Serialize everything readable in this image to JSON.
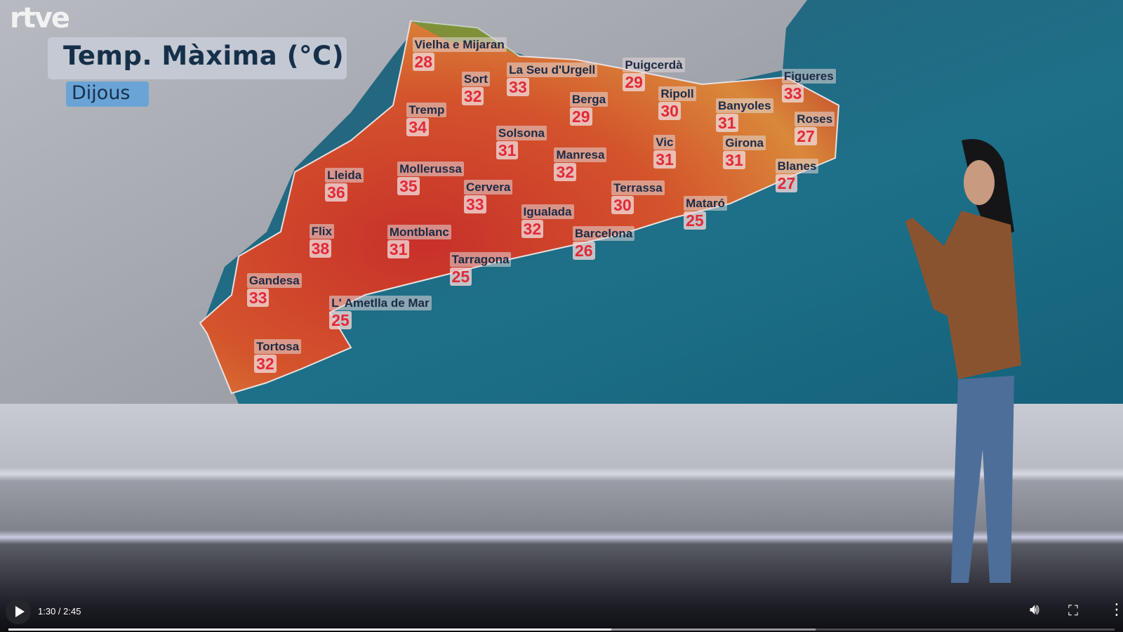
{
  "map": {
    "title": "Temp. Màxima (°C)",
    "day": "Dijous",
    "logo": "rtve",
    "cities": [
      {
        "name": "Vielha e Mijaran",
        "temp": "28"
      },
      {
        "name": "Sort",
        "temp": "32"
      },
      {
        "name": "La Seu d'Urgell",
        "temp": "33"
      },
      {
        "name": "Puigcerdà",
        "temp": "29"
      },
      {
        "name": "Figueres",
        "temp": "33"
      },
      {
        "name": "Tremp",
        "temp": "34"
      },
      {
        "name": "Berga",
        "temp": "29"
      },
      {
        "name": "Ripoll",
        "temp": "30"
      },
      {
        "name": "Banyoles",
        "temp": "31"
      },
      {
        "name": "Roses",
        "temp": "27"
      },
      {
        "name": "Solsona",
        "temp": "31"
      },
      {
        "name": "Vic",
        "temp": "31"
      },
      {
        "name": "Girona",
        "temp": "31"
      },
      {
        "name": "Manresa",
        "temp": "32"
      },
      {
        "name": "Blanes",
        "temp": "27"
      },
      {
        "name": "Lleida",
        "temp": "36"
      },
      {
        "name": "Mollerussa",
        "temp": "35"
      },
      {
        "name": "Cervera",
        "temp": "33"
      },
      {
        "name": "Terrassa",
        "temp": "30"
      },
      {
        "name": "Mataró",
        "temp": "25"
      },
      {
        "name": "Igualada",
        "temp": "32"
      },
      {
        "name": "Flix",
        "temp": "38"
      },
      {
        "name": "Montblanc",
        "temp": "31"
      },
      {
        "name": "Barcelona",
        "temp": "26"
      },
      {
        "name": "Tarragona",
        "temp": "25"
      },
      {
        "name": "Gandesa",
        "temp": "33"
      },
      {
        "name": "L' Ametlla de Mar",
        "temp": "25"
      },
      {
        "name": "Tortosa",
        "temp": "32"
      }
    ],
    "colors": {
      "land": "#a9abb2",
      "sea": "#1f6f86",
      "hot": "#d2352a",
      "warm": "#e07a2a"
    }
  },
  "player": {
    "time": "1:30 / 2:45",
    "played_fraction": 0.545,
    "buffered_fraction": 0.73,
    "icons": [
      "play-icon",
      "volume-icon",
      "fullscreen-icon",
      "more-options-icon"
    ]
  }
}
